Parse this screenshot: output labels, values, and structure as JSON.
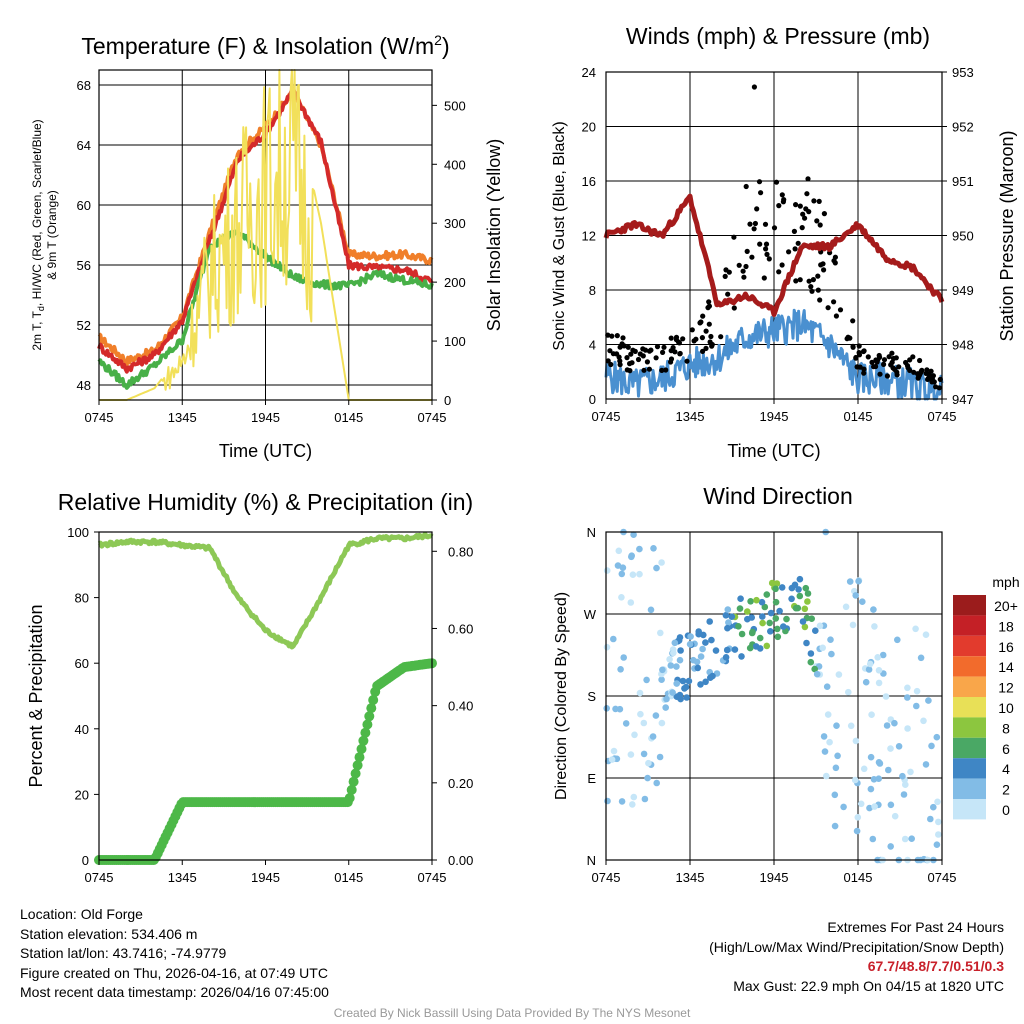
{
  "chart_data": [
    {
      "type": "line",
      "title": "Temperature (F) & Insolation (W/m2)",
      "title_main": "Temperature (F) & Insolation (W/m",
      "title_sup": "2",
      "title_end": ")",
      "xlabel": "Time (UTC)",
      "ylabel_line1": "2m T, T",
      "ylabel_sub": "d",
      "ylabel_line1_end": ", HI/WC (Red, Green, Scarlet/Blue)",
      "ylabel_line2": "& 9m T (Orange)",
      "y2label": "Solar Insolation (Yellow)",
      "x_ticks": [
        "0745",
        "1345",
        "1945",
        "0145",
        "0745"
      ],
      "ylim": [
        47,
        69
      ],
      "y_ticks": [
        48,
        52,
        56,
        60,
        64,
        68
      ],
      "y2lim": [
        0,
        560
      ],
      "y2_ticks": [
        0,
        100,
        200,
        300,
        400,
        500
      ],
      "x_hours": [
        0,
        2,
        4,
        6,
        8,
        10,
        12,
        14,
        16,
        18,
        20,
        22,
        24
      ],
      "series": [
        {
          "name": "9m T",
          "color": "#f07f2a",
          "values": [
            51.2,
            49.6,
            50.3,
            52.5,
            58.2,
            63.5,
            65.2,
            67.5,
            64.0,
            56.7,
            56.6,
            56.7,
            56.3
          ]
        },
        {
          "name": "2m T",
          "color": "#d42a2a",
          "values": [
            50.6,
            49.1,
            50.0,
            52.3,
            57.7,
            63.0,
            64.8,
            67.6,
            64.2,
            56.0,
            55.8,
            55.7,
            54.9
          ]
        },
        {
          "name": "Td",
          "color": "#48b048",
          "values": [
            49.6,
            48.0,
            49.3,
            51.0,
            57.3,
            58.2,
            56.6,
            55.2,
            54.7,
            54.6,
            55.4,
            55.0,
            54.6
          ]
        },
        {
          "name": "Solar Insolation",
          "color": "#f2e05a",
          "axis": "y2",
          "values": [
            0,
            0,
            20,
            80,
            280,
            380,
            460,
            520,
            300,
            0,
            0,
            0,
            0
          ]
        }
      ]
    },
    {
      "type": "scatter",
      "title": "Winds (mph) & Pressure (mb)",
      "xlabel": "Time (UTC)",
      "ylabel": "Sonic Wind & Gust (Blue, Black)",
      "y2label": "Station Pressure (Maroon)",
      "x_ticks": [
        "0745",
        "1345",
        "1945",
        "0145",
        "0745"
      ],
      "ylim": [
        0,
        24
      ],
      "y_ticks": [
        0,
        4,
        8,
        12,
        16,
        20,
        24
      ],
      "y2lim": [
        947,
        953
      ],
      "y2_ticks": [
        947,
        948,
        949,
        950,
        951,
        952,
        953
      ],
      "x_hours": [
        0,
        2,
        4,
        6,
        8,
        10,
        12,
        14,
        16,
        18,
        20,
        22,
        24
      ],
      "series": [
        {
          "name": "Sonic Wind",
          "color": "#4a90d0",
          "values": [
            1.8,
            1.0,
            1.5,
            2.5,
            3.0,
            4.5,
            5.0,
            5.5,
            4.0,
            1.5,
            1.5,
            1.0,
            0.5
          ]
        },
        {
          "name": "Gust",
          "color": "#000000",
          "values": [
            4.0,
            3.0,
            3.0,
            4.0,
            6.0,
            12.0,
            12.5,
            13.0,
            10.0,
            3.0,
            2.5,
            2.5,
            1.0
          ]
        },
        {
          "name": "Station Pressure",
          "color": "#a51b1b",
          "axis": "y2",
          "values": [
            950.0,
            950.2,
            950.0,
            950.7,
            948.7,
            948.9,
            948.6,
            949.8,
            949.8,
            950.2,
            949.6,
            949.4,
            948.8
          ]
        }
      ],
      "max_gust_point": {
        "hour": 10.6,
        "value": 22.9
      }
    },
    {
      "type": "line",
      "title": "Relative Humidity (%) & Precipitation (in)",
      "ylabel": "Percent & Precipitation",
      "x_ticks": [
        "0745",
        "1345",
        "1945",
        "0145",
        "0745"
      ],
      "ylim": [
        0,
        100
      ],
      "y_ticks": [
        0,
        20,
        40,
        60,
        80,
        100
      ],
      "y2lim": [
        0,
        0.85
      ],
      "y2_ticks": [
        "0.00",
        "0.20",
        "0.40",
        "0.60",
        "0.80"
      ],
      "x_hours": [
        0,
        2,
        4,
        6,
        8,
        10,
        12,
        14,
        16,
        18,
        20,
        22,
        24
      ],
      "series": [
        {
          "name": "Relative Humidity",
          "color": "#8dc856",
          "values": [
            96,
            97,
            97,
            96,
            95,
            80,
            70,
            65,
            80,
            96,
            98,
            98,
            99
          ]
        },
        {
          "name": "Precipitation",
          "color": "#4db848",
          "axis": "y2",
          "values": [
            0.0,
            0.0,
            0.0,
            0.15,
            0.15,
            0.15,
            0.15,
            0.15,
            0.15,
            0.15,
            0.45,
            0.5,
            0.51
          ]
        }
      ]
    },
    {
      "type": "scatter",
      "title": "Wind Direction",
      "ylabel": "Direction (Colored By Speed)",
      "x_ticks": [
        "0745",
        "1345",
        "1945",
        "0145",
        "0745"
      ],
      "y_ticks": [
        "N",
        "E",
        "S",
        "W",
        "N"
      ],
      "ylim": [
        0,
        360
      ],
      "x_hours": [
        0,
        2,
        4,
        6,
        8,
        10,
        12,
        14,
        16,
        18,
        20,
        22,
        24
      ],
      "direction_trend": [
        215,
        205,
        200,
        215,
        235,
        260,
        270,
        275,
        200,
        150,
        120,
        100,
        90
      ],
      "legend_title": "mph",
      "legend_labels": [
        "20+",
        "18",
        "16",
        "14",
        "12",
        "10",
        "8",
        "6",
        "4",
        "2",
        "0"
      ],
      "legend_colors": [
        "#9b1c1c",
        "#c42026",
        "#e23b2d",
        "#f26b2c",
        "#f9a64a",
        "#e8e057",
        "#8cc63f",
        "#4aa865",
        "#3f86c5",
        "#82bce6",
        "#c6e6f8"
      ]
    }
  ],
  "info": {
    "location": "Location: Old Forge",
    "elevation": "Station elevation: 534.406 m",
    "latlon": "Station lat/lon: 43.7416; -74.9779",
    "created": "Figure created on Thu, 2026-04-16, at 07:49 UTC",
    "recent": "Most recent data timestamp: 2026/04/16 07:45:00"
  },
  "extremes": {
    "title": "Extremes For Past 24 Hours",
    "subtitle": "(High/Low/Max Wind/Precipitation/Snow Depth)",
    "values": "67.7/48.8/7.7/0.51/0.3",
    "max_gust": "Max Gust: 22.9 mph On 04/15 at 1820 UTC"
  },
  "credit": "Created By Nick Bassill Using Data Provided By The NYS Mesonet"
}
